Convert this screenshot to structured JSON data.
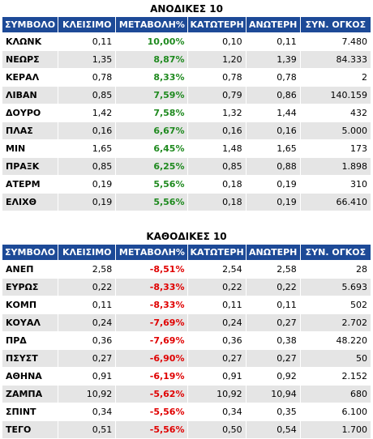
{
  "colors": {
    "header_bg": "#1d4a97",
    "up": "#1f8a1f",
    "down": "#e00000",
    "row_alt": "#e5e5e5"
  },
  "gainers": {
    "title": "ΑΝΟΔΙΚΕΣ 10",
    "headers": [
      "ΣΥΜΒΟΛΟ",
      "ΚΛΕΙΣΙΜΟ",
      "ΜΕΤΑΒΟΛΗ%",
      "ΚΑΤΩΤΕΡΗ",
      "ΑΝΩΤΕΡΗ",
      "ΣΥΝ. ΟΓΚΟΣ"
    ],
    "rows": [
      [
        "ΚΛΩΝΚ",
        "0,11",
        "10,00%",
        "0,10",
        "0,11",
        "7.480"
      ],
      [
        "ΝΕΩΡΣ",
        "1,35",
        "8,87%",
        "1,20",
        "1,39",
        "84.333"
      ],
      [
        "ΚΕΡΑΛ",
        "0,78",
        "8,33%",
        "0,78",
        "0,78",
        "2"
      ],
      [
        "ΛΙΒΑΝ",
        "0,85",
        "7,59%",
        "0,79",
        "0,86",
        "140.159"
      ],
      [
        "ΔΟΥΡΟ",
        "1,42",
        "7,58%",
        "1,32",
        "1,44",
        "432"
      ],
      [
        "ΠΛΑΣ",
        "0,16",
        "6,67%",
        "0,16",
        "0,16",
        "5.000"
      ],
      [
        "ΜΙΝ",
        "1,65",
        "6,45%",
        "1,48",
        "1,65",
        "173"
      ],
      [
        "ΠΡΑΞΚ",
        "0,85",
        "6,25%",
        "0,85",
        "0,88",
        "1.898"
      ],
      [
        "ΑΤΕΡΜ",
        "0,19",
        "5,56%",
        "0,18",
        "0,19",
        "310"
      ],
      [
        "ΕΛΙΧΘ",
        "0,19",
        "5,56%",
        "0,18",
        "0,19",
        "66.410"
      ]
    ]
  },
  "losers": {
    "title": "ΚΑΘΟΔΙΚΕΣ 10",
    "headers": [
      "ΣΥΜΒΟΛΟ",
      "ΚΛΕΙΣΙΜΟ",
      "ΜΕΤΑΒΟΛΗ%",
      "ΚΑΤΩΤΕΡΗ",
      "ΑΝΩΤΕΡΗ",
      "ΣΥΝ. ΟΓΚΟΣ"
    ],
    "rows": [
      [
        "ΑΝΕΠ",
        "2,58",
        "-8,51%",
        "2,54",
        "2,58",
        "28"
      ],
      [
        "ΕΥΡΩΣ",
        "0,22",
        "-8,33%",
        "0,22",
        "0,22",
        "5.693"
      ],
      [
        "ΚΟΜΠ",
        "0,11",
        "-8,33%",
        "0,11",
        "0,11",
        "502"
      ],
      [
        "ΚΟΥΑΛ",
        "0,24",
        "-7,69%",
        "0,24",
        "0,27",
        "2.702"
      ],
      [
        "ΠΡΔ",
        "0,36",
        "-7,69%",
        "0,36",
        "0,38",
        "48.220"
      ],
      [
        "ΠΣΥΣΤ",
        "0,27",
        "-6,90%",
        "0,27",
        "0,27",
        "50"
      ],
      [
        "ΑΘΗΝΑ",
        "0,91",
        "-6,19%",
        "0,91",
        "0,92",
        "2.152"
      ],
      [
        "ΖΑΜΠΑ",
        "10,92",
        "-5,62%",
        "10,92",
        "10,94",
        "680"
      ],
      [
        "ΣΠΙΝΤ",
        "0,34",
        "-5,56%",
        "0,34",
        "0,35",
        "6.100"
      ],
      [
        "ΤΕΓΟ",
        "0,51",
        "-5,56%",
        "0,50",
        "0,54",
        "1.700"
      ]
    ]
  }
}
